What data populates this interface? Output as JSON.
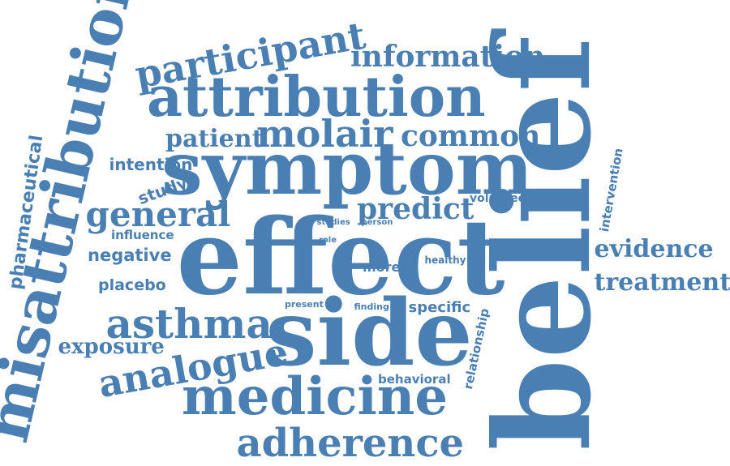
{
  "colors": {
    "word": "#4a7fb3",
    "background": "#ffffff"
  },
  "words": [
    {
      "key": "effect",
      "text": "effect"
    },
    {
      "key": "belief",
      "text": "belief"
    },
    {
      "key": "symptom",
      "text": "symptom"
    },
    {
      "key": "side",
      "text": "side"
    },
    {
      "key": "misattribution",
      "text": "misattribution"
    },
    {
      "key": "attribution",
      "text": "attribution"
    },
    {
      "key": "medicine",
      "text": "medicine"
    },
    {
      "key": "adherence",
      "text": "adherence"
    },
    {
      "key": "participant",
      "text": "participant"
    },
    {
      "key": "information",
      "text": "information"
    },
    {
      "key": "analogue",
      "text": "analogue"
    },
    {
      "key": "asthma",
      "text": "asthma"
    },
    {
      "key": "general",
      "text": "general"
    },
    {
      "key": "molair",
      "text": "molair"
    },
    {
      "key": "common",
      "text": "common"
    },
    {
      "key": "patient",
      "text": "patient"
    },
    {
      "key": "treatment",
      "text": "treatment"
    },
    {
      "key": "evidence",
      "text": "evidence"
    },
    {
      "key": "predict",
      "text": "predict"
    },
    {
      "key": "exposure",
      "text": "exposure"
    },
    {
      "key": "negative",
      "text": "negative"
    },
    {
      "key": "intention",
      "text": "intention"
    },
    {
      "key": "study",
      "text": "study"
    },
    {
      "key": "placebo",
      "text": "placebo"
    },
    {
      "key": "specific",
      "text": "specific"
    },
    {
      "key": "pharmaceutical",
      "text": "pharmaceutical"
    },
    {
      "key": "intervention",
      "text": "intervention"
    },
    {
      "key": "relationship",
      "text": "relationship"
    },
    {
      "key": "behavioral",
      "text": "behavioral"
    },
    {
      "key": "volunteer",
      "text": "volunteer"
    },
    {
      "key": "influence",
      "text": "influence"
    },
    {
      "key": "more",
      "text": "more"
    },
    {
      "key": "healthy",
      "text": "healthy"
    },
    {
      "key": "studies",
      "text": "studies"
    },
    {
      "key": "person",
      "text": "person"
    },
    {
      "key": "role",
      "text": "role"
    },
    {
      "key": "present",
      "text": "present"
    },
    {
      "key": "finding",
      "text": "finding"
    }
  ]
}
